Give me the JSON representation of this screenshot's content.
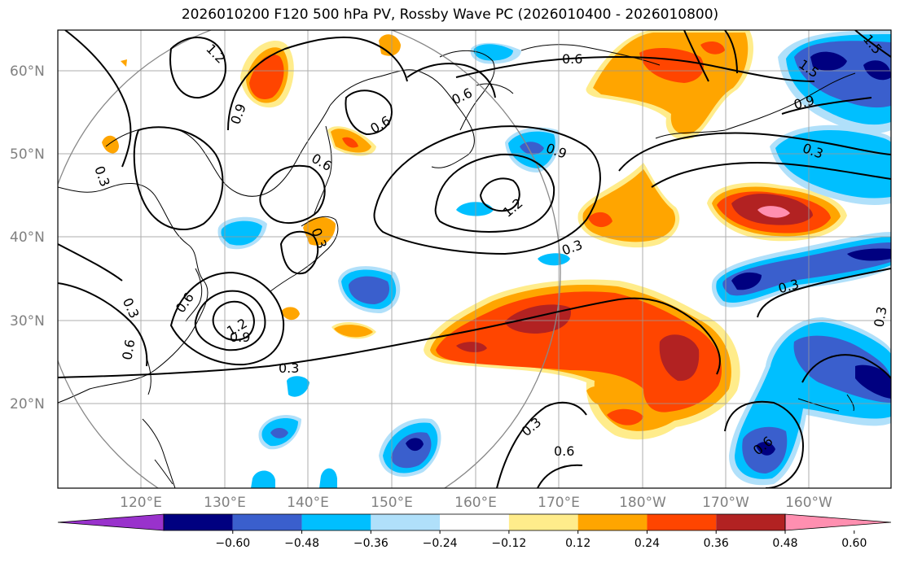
{
  "title": "2026010200 F120 500 hPa PV, Rossby Wave PC (2026010400 - 2026010800)",
  "map": {
    "lat_ticks": [
      "60°N",
      "50°N",
      "40°N",
      "30°N",
      "20°N"
    ],
    "lon_ticks": [
      "120°E",
      "130°E",
      "140°E",
      "150°E",
      "160°E",
      "170°E",
      "180°W",
      "170°W",
      "160°W"
    ],
    "grid": true
  },
  "contour_labels": [
    "1.2",
    "0.9",
    "0.6",
    "0.3",
    "1.5"
  ],
  "colorbar": {
    "labels": [
      "−0.60",
      "−0.48",
      "−0.36",
      "−0.24",
      "−0.12",
      "0.12",
      "0.24",
      "0.36",
      "0.48",
      "0.60"
    ],
    "colors": [
      "#9932CC",
      "#000080",
      "#3A5FCD",
      "#00BFFF",
      "#B0E0FA",
      "#FFFFFF",
      "#FFEC8B",
      "#FFA500",
      "#FF4500",
      "#B22222",
      "#FF8FB0"
    ]
  }
}
